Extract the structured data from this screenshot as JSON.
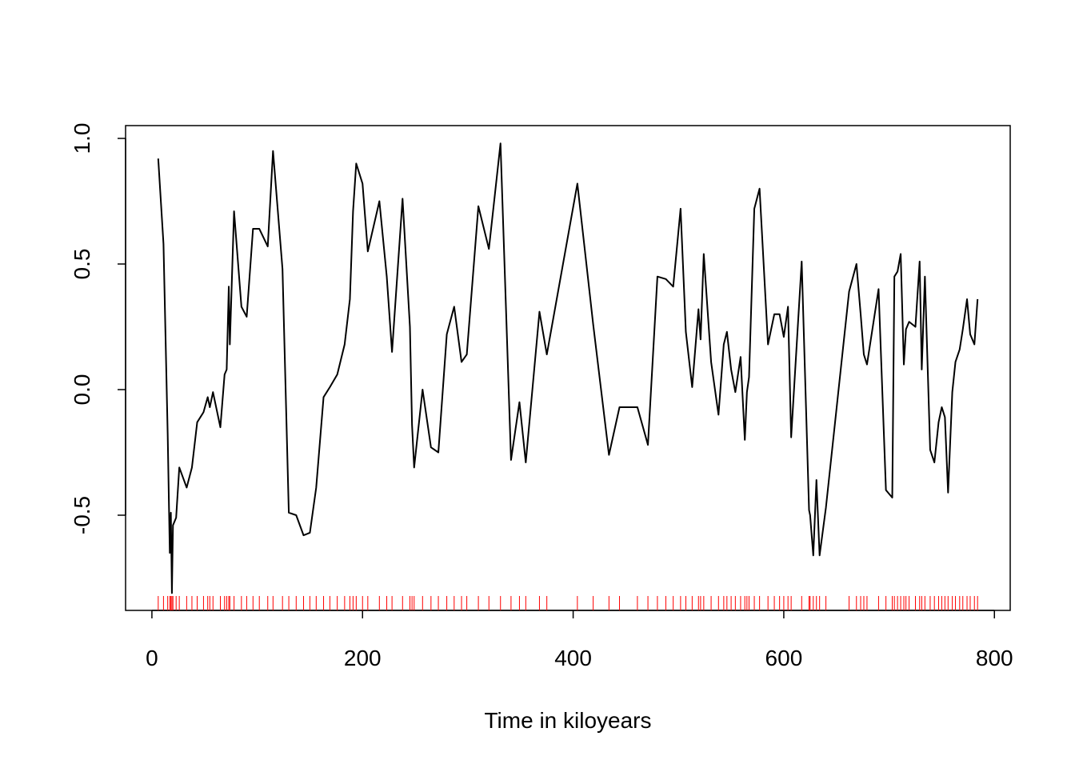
{
  "chart_data": {
    "type": "line",
    "x_label": "Time in kiloyears",
    "x": [
      6,
      11,
      15,
      17,
      18,
      19,
      20,
      23,
      26,
      33,
      38,
      43,
      49,
      53,
      55,
      58,
      65,
      69,
      71,
      73,
      74,
      78,
      85,
      90,
      96,
      102,
      110,
      115,
      124,
      130,
      137,
      144,
      150,
      156,
      163,
      169,
      176,
      183,
      188,
      191,
      194,
      200,
      205,
      216,
      223,
      228,
      238,
      245,
      247,
      249,
      257,
      265,
      272,
      280,
      287,
      294,
      299,
      310,
      320,
      331,
      341,
      349,
      355,
      368,
      375,
      404,
      419,
      434,
      444,
      461,
      471,
      480,
      488,
      495,
      502,
      507,
      513,
      519,
      521,
      524,
      531,
      538,
      543,
      546,
      550,
      554,
      559,
      563,
      565,
      567,
      572,
      577,
      585,
      591,
      596,
      600,
      604,
      607,
      617,
      624,
      625,
      628,
      631,
      634,
      640,
      662,
      669,
      673,
      676,
      679,
      690,
      697,
      703,
      705,
      708,
      711,
      714,
      716,
      719,
      725,
      729,
      731,
      734,
      739,
      743,
      747,
      750,
      753,
      756,
      760,
      763,
      767,
      770,
      774,
      777,
      781,
      784
    ],
    "values": [
      0.92,
      0.58,
      -0.18,
      -0.65,
      -0.49,
      -0.81,
      -0.54,
      -0.51,
      -0.31,
      -0.39,
      -0.31,
      -0.13,
      -0.09,
      -0.03,
      -0.07,
      -0.01,
      -0.15,
      0.06,
      0.08,
      0.41,
      0.18,
      0.71,
      0.33,
      0.29,
      0.64,
      0.64,
      0.57,
      0.95,
      0.48,
      -0.49,
      -0.5,
      -0.58,
      -0.57,
      -0.39,
      -0.03,
      0.01,
      0.06,
      0.18,
      0.36,
      0.71,
      0.9,
      0.82,
      0.55,
      0.75,
      0.45,
      0.15,
      0.76,
      0.25,
      -0.14,
      -0.31,
      0,
      -0.23,
      -0.25,
      0.22,
      0.33,
      0.11,
      0.14,
      0.73,
      0.56,
      0.98,
      -0.28,
      -0.05,
      -0.29,
      0.31,
      0.14,
      0.82,
      0.26,
      -0.26,
      -0.07,
      -0.07,
      -0.22,
      0.45,
      0.44,
      0.41,
      0.72,
      0.23,
      0.01,
      0.32,
      0.2,
      0.54,
      0.11,
      -0.1,
      0.18,
      0.23,
      0.08,
      -0.01,
      0.13,
      -0.2,
      -0.01,
      0.05,
      0.72,
      0.8,
      0.18,
      0.3,
      0.3,
      0.21,
      0.33,
      -0.19,
      0.51,
      -0.48,
      -0.5,
      -0.66,
      -0.36,
      -0.66,
      -0.47,
      0.39,
      0.5,
      0.3,
      0.14,
      0.1,
      0.4,
      -0.4,
      -0.43,
      0.45,
      0.47,
      0.54,
      0.1,
      0.24,
      0.27,
      0.25,
      0.51,
      0.08,
      0.45,
      -0.24,
      -0.29,
      -0.13,
      -0.07,
      -0.11,
      -0.41,
      -0.01,
      0.11,
      0.16,
      0.24,
      0.36,
      0.22,
      0.18,
      0.36
    ],
    "color": "#000000",
    "rug": true,
    "rug_color": "#ff0000",
    "xlim": [
      -25,
      815
    ],
    "ylim": [
      -0.879,
      1.051
    ],
    "xticks": [
      0,
      200,
      400,
      600,
      800
    ],
    "yticks": [
      -0.5,
      {
        "value": 0,
        "label": "0.0"
      },
      0.5,
      {
        "value": 1,
        "label": "1.0"
      }
    ]
  }
}
